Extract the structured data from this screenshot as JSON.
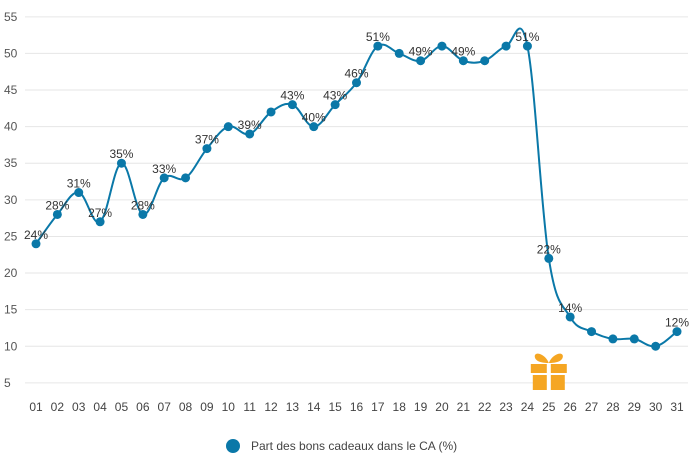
{
  "chart_data": {
    "type": "line",
    "x": [
      "01",
      "02",
      "03",
      "04",
      "05",
      "06",
      "07",
      "08",
      "09",
      "10",
      "11",
      "12",
      "13",
      "14",
      "15",
      "16",
      "17",
      "18",
      "19",
      "20",
      "21",
      "22",
      "23",
      "24",
      "25",
      "26",
      "27",
      "28",
      "29",
      "30",
      "31"
    ],
    "series": [
      {
        "name": "Part des bons cadeaux dans le CA (%)",
        "values": [
          24,
          28,
          31,
          27,
          35,
          28,
          33,
          33,
          37,
          40,
          39,
          42,
          43,
          40,
          43,
          46,
          51,
          50,
          49,
          51,
          49,
          49,
          51,
          51,
          22,
          14,
          12,
          11,
          11,
          10,
          12
        ],
        "color": "#0a78a8"
      }
    ],
    "data_labels": [
      {
        "index": 0,
        "text": "24%"
      },
      {
        "index": 1,
        "text": "28%"
      },
      {
        "index": 2,
        "text": "31%"
      },
      {
        "index": 3,
        "text": "27%"
      },
      {
        "index": 4,
        "text": "35%"
      },
      {
        "index": 5,
        "text": "28%"
      },
      {
        "index": 6,
        "text": "33%"
      },
      {
        "index": 8,
        "text": "37%"
      },
      {
        "index": 10,
        "text": "39%"
      },
      {
        "index": 12,
        "text": "43%"
      },
      {
        "index": 13,
        "text": "40%"
      },
      {
        "index": 14,
        "text": "43%"
      },
      {
        "index": 15,
        "text": "46%"
      },
      {
        "index": 16,
        "text": "51%"
      },
      {
        "index": 18,
        "text": "49%"
      },
      {
        "index": 20,
        "text": "49%"
      },
      {
        "index": 23,
        "text": "51%"
      },
      {
        "index": 24,
        "text": "22%"
      },
      {
        "index": 25,
        "text": "14%"
      },
      {
        "index": 30,
        "text": "12%"
      }
    ],
    "yticks": [
      5,
      10,
      15,
      20,
      25,
      30,
      35,
      40,
      45,
      50,
      55
    ],
    "ylim": [
      3,
      56
    ],
    "grid": true,
    "legend_position": "bottom-center",
    "annotation": {
      "icon": "gift-icon",
      "at_index": 24,
      "color": "#f5a623"
    },
    "title": "",
    "xlabel": "",
    "ylabel": ""
  }
}
